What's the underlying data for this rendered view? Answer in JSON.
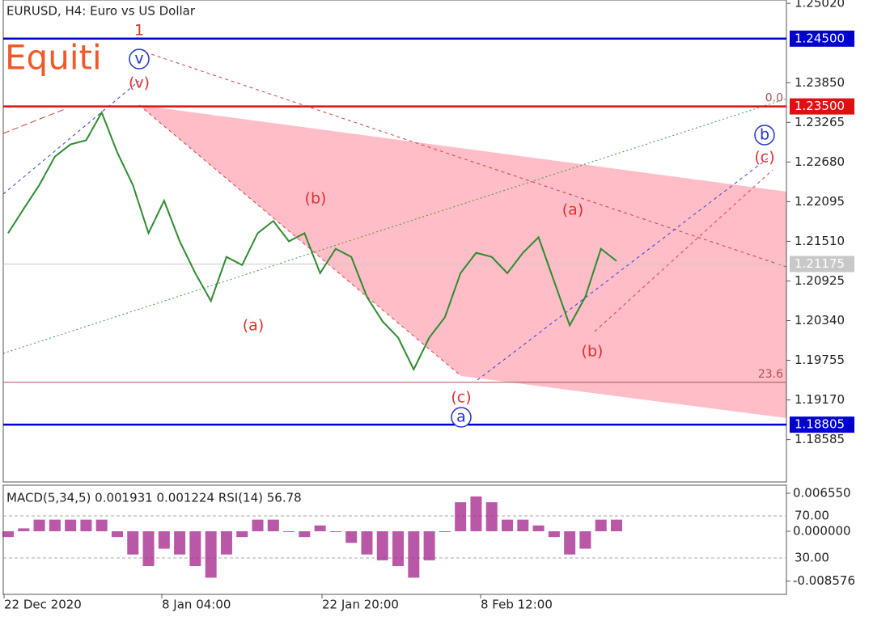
{
  "chart_data": [
    {
      "type": "line",
      "title": "EURUSD, H4:  Euro vs US Dollar",
      "watermark": "Equiti",
      "color": "#2e8b2e",
      "values": [
        1.2163,
        1.2199,
        1.2234,
        1.2276,
        1.2294,
        1.23,
        1.2341,
        1.2282,
        1.2234,
        1.2163,
        1.2211,
        1.2151,
        1.2104,
        1.2063,
        1.2128,
        1.2116,
        1.2163,
        1.2181,
        1.2151,
        1.2163,
        1.2104,
        1.214,
        1.2128,
        1.2069,
        1.2033,
        1.2009,
        1.1962,
        1.2009,
        1.2039,
        1.2104,
        1.2134,
        1.2128,
        1.2104,
        1.2134,
        1.2157,
        1.2092,
        1.2027,
        1.2069,
        1.214,
        1.2122
      ],
      "ylim": [
        1.1796,
        1.2507
      ],
      "yticks": [
        {
          "value": 1.2502,
          "label": "1.25020"
        },
        {
          "value": 1.2385,
          "label": "1.23850"
        },
        {
          "value": 1.23265,
          "label": "1.23265"
        },
        {
          "value": 1.2268,
          "label": "1.22680"
        },
        {
          "value": 1.22095,
          "label": "1.22095"
        },
        {
          "value": 1.2151,
          "label": "1.21510"
        },
        {
          "value": 1.20925,
          "label": "1.20925"
        },
        {
          "value": 1.2034,
          "label": "1.20340"
        },
        {
          "value": 1.19755,
          "label": "1.19755"
        },
        {
          "value": 1.1917,
          "label": "1.19170"
        },
        {
          "value": 1.18585,
          "label": "1.18585"
        }
      ],
      "levels": [
        {
          "value": 1.245,
          "label": "1.24500",
          "color": "#0000cc"
        },
        {
          "value": 1.235,
          "label": "1.23500",
          "color": "#dd1111"
        },
        {
          "value": 1.18805,
          "label": "1.18805",
          "color": "#0000cc"
        },
        {
          "value": 1.21175,
          "label": "1.21175",
          "color": "#c8c8c8"
        }
      ],
      "fib_levels": [
        {
          "value": 1.235,
          "label": "0.0"
        },
        {
          "value": 1.1943,
          "label": "23.6"
        }
      ],
      "annotations": [
        {
          "text": "1",
          "color": "#c84030"
        },
        {
          "text": "v",
          "color": "#2233cc",
          "circled": true
        },
        {
          "text": "(v)",
          "color": "#e03030"
        },
        {
          "text": "(a)",
          "color": "#e03030"
        },
        {
          "text": "(b)",
          "color": "#e03030"
        },
        {
          "text": "(c)",
          "color": "#e03030"
        },
        {
          "text": "a",
          "color": "#2233cc",
          "circled": true
        },
        {
          "text": "(a)",
          "color": "#e03030"
        },
        {
          "text": "(b)",
          "color": "#e03030"
        },
        {
          "text": "b",
          "color": "#2233cc",
          "circled": true
        },
        {
          "text": "(c)",
          "color": "#e03030"
        }
      ]
    },
    {
      "type": "bar",
      "title": "MACD(5,34,5) 0.001931 0.001224 RSI(14) 56.78",
      "color": "#a0208a",
      "values": [
        -0.001,
        0.0005,
        0.002,
        0.002,
        0.002,
        0.002,
        0.002,
        -0.001,
        -0.004,
        -0.006,
        -0.003,
        -0.004,
        -0.006,
        -0.008,
        -0.004,
        -0.001,
        0.002,
        0.002,
        0.0,
        -0.001,
        0.001,
        0.0,
        -0.002,
        -0.004,
        -0.005,
        -0.006,
        -0.008,
        -0.005,
        0.0,
        0.005,
        0.006,
        0.005,
        0.002,
        0.002,
        0.001,
        -0.001,
        -0.004,
        -0.003,
        0.002,
        0.002
      ],
      "ylim": [
        -0.01087,
        0.00794
      ],
      "yticks": [
        {
          "value": 0.00655,
          "label": "0.006550"
        },
        {
          "value": 0,
          "label": "0.000000"
        },
        {
          "value": -0.008576,
          "label": "-0.008576"
        }
      ],
      "y2lim": [
        -4.6,
        99.2
      ],
      "y2ticks": [
        {
          "value": 70,
          "label": "70.00"
        },
        {
          "value": 30,
          "label": "30.00"
        }
      ],
      "x_labels": [
        "22 Dec 2020",
        "8 Jan 04:00",
        "22 Jan 20:00",
        "8 Feb 12:00"
      ]
    }
  ]
}
